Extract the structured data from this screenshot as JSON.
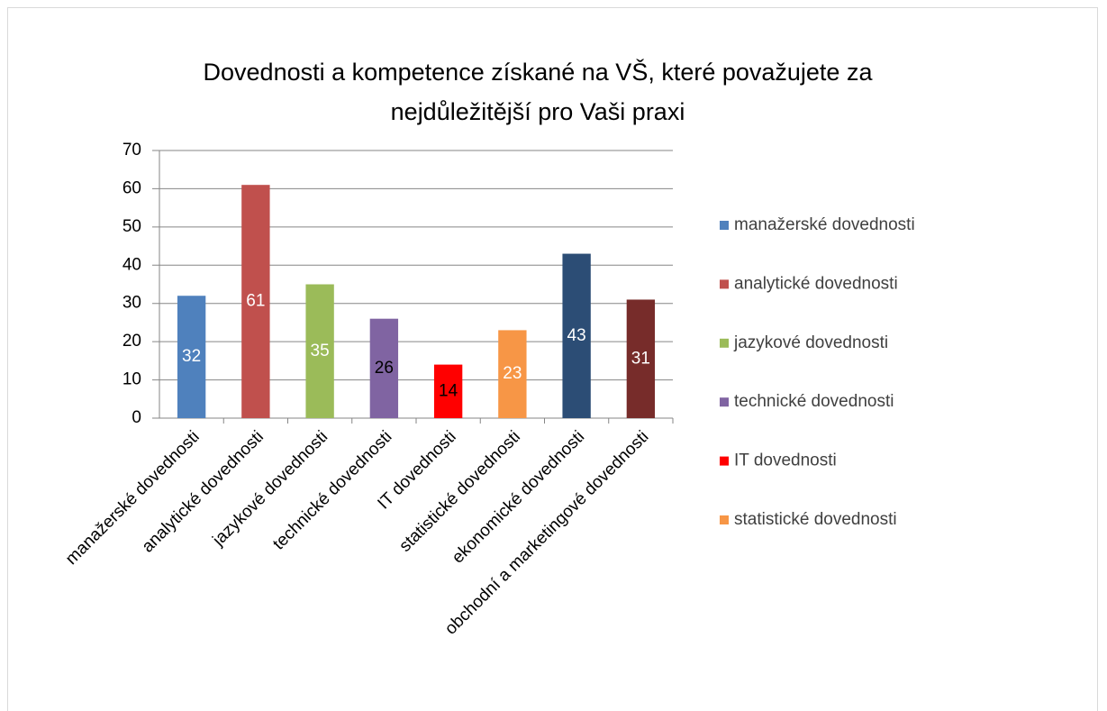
{
  "chart_data": {
    "type": "bar",
    "title": [
      "Dovednosti a kompetence získané na VŠ, které považujete za",
      "nejdůležitější pro Vaši praxi"
    ],
    "categories": [
      "manažerské dovednosti",
      "analytické dovednosti",
      "jazykové dovednosti",
      "technické dovednosti",
      "IT dovednosti",
      "statistické dovednosti",
      "ekonomické dovednosti",
      "obchodní a marketingové dovednosti"
    ],
    "values": [
      32,
      61,
      35,
      26,
      14,
      23,
      43,
      31
    ],
    "colors": [
      "#4f81bd",
      "#c0504d",
      "#9bbb59",
      "#8064a2",
      "#ff0000",
      "#f79646",
      "#2c4d75",
      "#772c2a"
    ],
    "value_label_colors": [
      "#ffffff",
      "#ffffff",
      "#ffffff",
      "#000000",
      "#000000",
      "#ffffff",
      "#ffffff",
      "#ffffff"
    ],
    "legend_entries": [
      "manažerské dovednosti",
      "analytické dovednosti",
      "jazykové dovednosti",
      "technické dovednosti",
      "IT dovednosti",
      "statistické dovednosti"
    ],
    "ylim": [
      0,
      70
    ],
    "yticks": [
      0,
      10,
      20,
      30,
      40,
      50,
      60,
      70
    ],
    "grid": true
  }
}
